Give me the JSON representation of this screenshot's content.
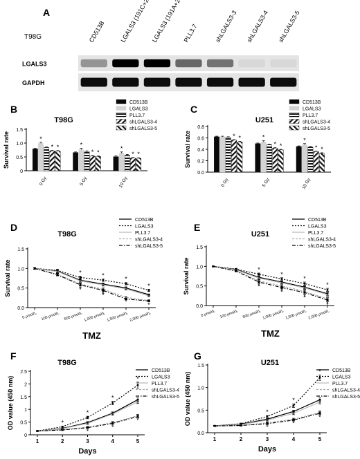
{
  "panels": {
    "A": "A",
    "B": "B",
    "C": "C",
    "D": "D",
    "E": "E",
    "F": "F",
    "G": "G"
  },
  "blot": {
    "cell_line": "T98G",
    "lanes": [
      "CD513B",
      "LGALS3 (191C+292A)",
      "LGALS3 (191A+292C)",
      "PLL3.7",
      "shLGALS3-3",
      "shLGALS3-4",
      "shLGALS3-5"
    ],
    "rows": [
      {
        "label": "LGALS3",
        "intensity": [
          0.35,
          1.0,
          1.0,
          0.55,
          0.5,
          0.05,
          0.05
        ]
      },
      {
        "label": "GAPDH",
        "intensity": [
          0.95,
          0.95,
          0.95,
          0.95,
          0.95,
          0.95,
          0.95
        ]
      }
    ]
  },
  "chart_data": [
    {
      "id": "B",
      "type": "bar",
      "title": "T98G",
      "ylabel": "Survival rate",
      "xlabel": "",
      "ylim": [
        0,
        1.5
      ],
      "yticks": [
        0,
        0.5,
        1.0,
        1.5
      ],
      "ytick_labels": [
        "0",
        "0.5",
        "1.0",
        "1.5"
      ],
      "categories": [
        "0 Gy",
        "5 Gy",
        "10 Gy"
      ],
      "series": [
        {
          "name": "CD513B",
          "values": [
            0.79,
            0.66,
            0.51
          ],
          "err": [
            0.02,
            0.02,
            0.03
          ],
          "star": [
            false,
            false,
            false
          ]
        },
        {
          "name": "LGALS3",
          "values": [
            0.99,
            0.76,
            0.63
          ],
          "err": [
            0.04,
            0.05,
            0.05
          ],
          "star": [
            true,
            true,
            true
          ]
        },
        {
          "name": "PLL3.7",
          "values": [
            0.84,
            0.69,
            0.56
          ],
          "err": [
            0.02,
            0.03,
            0.03
          ],
          "star": [
            false,
            false,
            false
          ]
        },
        {
          "name": "shLGALS3-4",
          "values": [
            0.72,
            0.53,
            0.46
          ],
          "err": [
            0.02,
            0.02,
            0.02
          ],
          "star": [
            true,
            true,
            true
          ]
        },
        {
          "name": "shLGALS3-5",
          "values": [
            0.71,
            0.52,
            0.45
          ],
          "err": [
            0.02,
            0.02,
            0.02
          ],
          "star": [
            true,
            true,
            true
          ]
        }
      ]
    },
    {
      "id": "C",
      "type": "bar",
      "title": "U251",
      "ylabel": "Survival rate",
      "xlabel": "",
      "ylim": [
        0,
        0.8
      ],
      "yticks": [
        0,
        0.2,
        0.4,
        0.6,
        0.8
      ],
      "ytick_labels": [
        "0.0",
        "0.2",
        "0.4",
        "0.6",
        "0.8"
      ],
      "categories": [
        "0 Gy",
        "5 Gy",
        "10 Gy"
      ],
      "series": [
        {
          "name": "CD513B",
          "values": [
            0.62,
            0.5,
            0.45
          ],
          "err": [
            0.01,
            0.01,
            0.01
          ],
          "star": [
            false,
            false,
            false
          ]
        },
        {
          "name": "LGALS3",
          "values": [
            0.62,
            0.53,
            0.48
          ],
          "err": [
            0.01,
            0.02,
            0.02
          ],
          "star": [
            false,
            true,
            true
          ]
        },
        {
          "name": "PLL3.7",
          "values": [
            0.61,
            0.48,
            0.44
          ],
          "err": [
            0.01,
            0.01,
            0.01
          ],
          "star": [
            false,
            false,
            false
          ]
        },
        {
          "name": "shLGALS3-4",
          "values": [
            0.56,
            0.42,
            0.36
          ],
          "err": [
            0.01,
            0.01,
            0.01
          ],
          "star": [
            true,
            true,
            true
          ]
        },
        {
          "name": "shLGALS3-5",
          "values": [
            0.53,
            0.39,
            0.33
          ],
          "err": [
            0.01,
            0.01,
            0.01
          ],
          "star": [
            true,
            true,
            true
          ]
        }
      ]
    },
    {
      "id": "D",
      "type": "line",
      "title": "T98G",
      "ylabel": "Survival rate",
      "xlabel": "TMZ",
      "ylim": [
        0,
        1.5
      ],
      "yticks": [
        0,
        0.5,
        1.0,
        1.5
      ],
      "ytick_labels": [
        "0.0",
        "0.5",
        "1.0",
        "1.5"
      ],
      "x": [
        "0 μmol/L",
        "100 μmol/L",
        "500 μmol/L",
        "1,000 μmol/L",
        "1,500 μmol/L",
        "2,000 μmol/L"
      ],
      "series": [
        {
          "name": "CD513B",
          "values": [
            1.0,
            0.93,
            0.7,
            0.6,
            0.5,
            0.33
          ],
          "err": [
            0.02,
            0.03,
            0.03,
            0.03,
            0.03,
            0.02
          ],
          "star": [
            false,
            false,
            false,
            false,
            false,
            false
          ]
        },
        {
          "name": "LGALS3",
          "values": [
            1.0,
            0.95,
            0.77,
            0.7,
            0.61,
            0.44
          ],
          "err": [
            0.02,
            0.03,
            0.03,
            0.03,
            0.03,
            0.03
          ],
          "star": [
            false,
            false,
            true,
            true,
            true,
            true
          ]
        },
        {
          "name": "PLL3.7",
          "values": [
            1.0,
            0.92,
            0.68,
            0.58,
            0.48,
            0.3
          ],
          "err": [
            0.02,
            0.03,
            0.03,
            0.03,
            0.03,
            0.02
          ],
          "star": [
            false,
            false,
            false,
            false,
            false,
            false
          ]
        },
        {
          "name": "shLGALS3-4",
          "values": [
            1.0,
            0.85,
            0.6,
            0.47,
            0.26,
            0.18
          ],
          "err": [
            0.02,
            0.03,
            0.03,
            0.03,
            0.02,
            0.02
          ],
          "star": [
            false,
            false,
            true,
            true,
            true,
            true
          ]
        },
        {
          "name": "shLGALS3-5",
          "values": [
            1.0,
            0.84,
            0.58,
            0.44,
            0.22,
            0.17
          ],
          "err": [
            0.02,
            0.03,
            0.03,
            0.03,
            0.02,
            0.02
          ],
          "star": [
            false,
            false,
            true,
            true,
            false,
            false
          ]
        }
      ]
    },
    {
      "id": "E",
      "type": "line",
      "title": "U251",
      "ylabel": "Survival rate",
      "xlabel": "TMZ",
      "ylim": [
        0,
        1.5
      ],
      "yticks": [
        0,
        0.5,
        1.0,
        1.5
      ],
      "ytick_labels": [
        "0.0",
        "0.5",
        "1.0",
        "1.5"
      ],
      "x": [
        "0 μmol/L",
        "100 μmol/L",
        "500 μmol/L",
        "1,000 μmol/L",
        "1,500 μmol/L",
        "2,000 μmol/L"
      ],
      "series": [
        {
          "name": "CD513B",
          "values": [
            1.0,
            0.92,
            0.72,
            0.6,
            0.47,
            0.3
          ],
          "err": [
            0.01,
            0.02,
            0.03,
            0.03,
            0.04,
            0.04
          ],
          "star": [
            false,
            false,
            false,
            false,
            false,
            false
          ]
        },
        {
          "name": "LGALS3",
          "values": [
            1.0,
            0.93,
            0.8,
            0.68,
            0.56,
            0.4
          ],
          "err": [
            0.01,
            0.02,
            0.03,
            0.03,
            0.04,
            0.04
          ],
          "star": [
            false,
            false,
            true,
            true,
            true,
            true
          ]
        },
        {
          "name": "PLL3.7",
          "values": [
            1.0,
            0.91,
            0.7,
            0.58,
            0.45,
            0.28
          ],
          "err": [
            0.01,
            0.02,
            0.03,
            0.03,
            0.04,
            0.04
          ],
          "star": [
            false,
            false,
            false,
            false,
            false,
            false
          ]
        },
        {
          "name": "shLGALS3-4",
          "values": [
            1.0,
            0.89,
            0.63,
            0.5,
            0.36,
            0.17
          ],
          "err": [
            0.01,
            0.02,
            0.03,
            0.03,
            0.04,
            0.03
          ],
          "star": [
            false,
            false,
            true,
            true,
            true,
            true
          ]
        },
        {
          "name": "shLGALS3-5",
          "values": [
            1.0,
            0.88,
            0.6,
            0.46,
            0.33,
            0.14
          ],
          "err": [
            0.01,
            0.02,
            0.03,
            0.03,
            0.04,
            0.03
          ],
          "star": [
            false,
            false,
            true,
            true,
            true,
            true
          ]
        }
      ]
    },
    {
      "id": "F",
      "type": "line",
      "title": "T98G",
      "ylabel": "OD value (450 nm)",
      "xlabel": "Days",
      "ylim": [
        0,
        2.5
      ],
      "yticks": [
        0,
        0.5,
        1.0,
        1.5,
        2.0,
        2.5
      ],
      "ytick_labels": [
        "0",
        "0.5",
        "1",
        "1.5",
        "2",
        "2.5"
      ],
      "x": [
        "1",
        "2",
        "3",
        "4",
        "5"
      ],
      "series": [
        {
          "name": "CD513B",
          "values": [
            0.15,
            0.25,
            0.48,
            0.85,
            1.38
          ],
          "err": [
            0.01,
            0.02,
            0.04,
            0.05,
            0.07
          ],
          "star": [
            false,
            false,
            false,
            false,
            false
          ]
        },
        {
          "name": "LGALS3",
          "values": [
            0.15,
            0.32,
            0.68,
            1.25,
            1.95
          ],
          "err": [
            0.01,
            0.02,
            0.05,
            0.07,
            0.12
          ],
          "star": [
            false,
            true,
            true,
            true,
            true
          ]
        },
        {
          "name": "PLL3.7",
          "values": [
            0.15,
            0.24,
            0.45,
            0.82,
            1.3
          ],
          "err": [
            0.01,
            0.02,
            0.04,
            0.05,
            0.07
          ],
          "star": [
            false,
            false,
            false,
            false,
            false
          ]
        },
        {
          "name": "shLGALS3-4",
          "values": [
            0.15,
            0.2,
            0.3,
            0.48,
            0.75
          ],
          "err": [
            0.01,
            0.01,
            0.03,
            0.04,
            0.05
          ],
          "star": [
            false,
            false,
            true,
            true,
            true
          ]
        },
        {
          "name": "shLGALS3-5",
          "values": [
            0.15,
            0.19,
            0.28,
            0.45,
            0.72
          ],
          "err": [
            0.01,
            0.01,
            0.03,
            0.04,
            0.05
          ],
          "star": [
            false,
            false,
            false,
            false,
            false
          ]
        }
      ]
    },
    {
      "id": "G",
      "type": "line",
      "title": "U251",
      "ylabel": "OD value (450 nm)",
      "xlabel": "Days",
      "ylim": [
        0,
        1.5
      ],
      "yticks": [
        0,
        0.5,
        1.0,
        1.5
      ],
      "ytick_labels": [
        "0.0",
        "0.5",
        "1.0",
        "1.5"
      ],
      "x": [
        "1",
        "2",
        "3",
        "4",
        "5"
      ],
      "series": [
        {
          "name": "CD513B",
          "values": [
            0.15,
            0.19,
            0.3,
            0.47,
            0.73
          ],
          "err": [
            0.01,
            0.01,
            0.02,
            0.03,
            0.04
          ],
          "star": [
            false,
            false,
            false,
            false,
            false
          ]
        },
        {
          "name": "LGALS3",
          "values": [
            0.15,
            0.2,
            0.36,
            0.6,
            1.22
          ],
          "err": [
            0.01,
            0.01,
            0.02,
            0.04,
            0.06
          ],
          "star": [
            false,
            false,
            true,
            true,
            true
          ]
        },
        {
          "name": "PLL3.7",
          "values": [
            0.15,
            0.18,
            0.28,
            0.43,
            0.68
          ],
          "err": [
            0.01,
            0.01,
            0.02,
            0.03,
            0.04
          ],
          "star": [
            false,
            false,
            false,
            false,
            false
          ]
        },
        {
          "name": "shLGALS3-4",
          "values": [
            0.15,
            0.16,
            0.22,
            0.3,
            0.45
          ],
          "err": [
            0.01,
            0.01,
            0.02,
            0.02,
            0.03
          ],
          "star": [
            false,
            false,
            true,
            true,
            true
          ]
        },
        {
          "name": "shLGALS3-5",
          "values": [
            0.15,
            0.16,
            0.2,
            0.28,
            0.43
          ],
          "err": [
            0.01,
            0.01,
            0.02,
            0.02,
            0.03
          ],
          "star": [
            false,
            false,
            false,
            false,
            false
          ]
        }
      ]
    }
  ]
}
